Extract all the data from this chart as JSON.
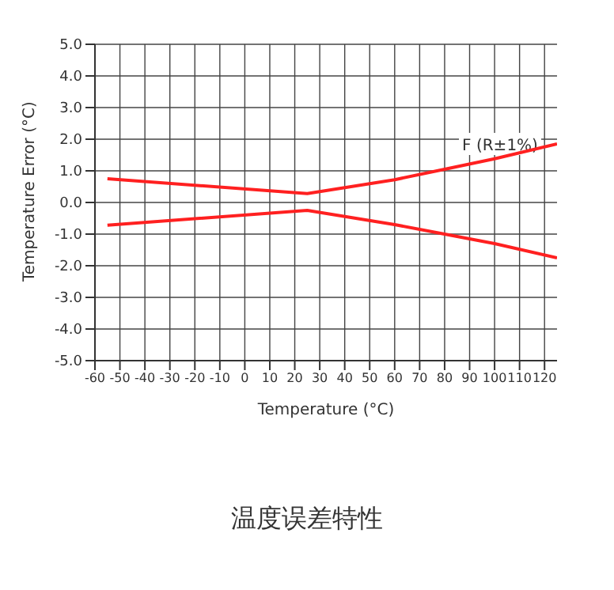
{
  "chart_data": {
    "type": "line",
    "title": "温度误差特性",
    "xlabel": "Temperature (°C)",
    "ylabel": "Temperature Error (°C)",
    "series": [
      {
        "color": "#ff2020",
        "x": [
          -55,
          25,
          60,
          80,
          100,
          125
        ],
        "values": [
          0.75,
          0.28,
          0.72,
          1.05,
          1.38,
          1.85
        ]
      },
      {
        "color": "#ff2020",
        "x": [
          -55,
          25,
          60,
          80,
          100,
          125
        ],
        "values": [
          -0.72,
          -0.25,
          -0.7,
          -1.0,
          -1.3,
          -1.75
        ]
      }
    ],
    "annotations": [
      "F (R±1%)"
    ],
    "xlim": [
      -60,
      125
    ],
    "xticks": [
      -60,
      -50,
      -40,
      -30,
      -20,
      -10,
      0,
      10,
      20,
      30,
      40,
      50,
      60,
      70,
      80,
      90,
      100,
      110,
      120
    ],
    "ylim": [
      -5,
      5
    ],
    "yticks": [
      {
        "value": -5,
        "label": "-5.0"
      },
      {
        "value": -4,
        "label": "-4.0"
      },
      {
        "value": -3,
        "label": "-3.0"
      },
      {
        "value": -2,
        "label": "-2.0"
      },
      {
        "value": -1,
        "label": "-1.0"
      },
      {
        "value": 0,
        "label": "0.0"
      },
      {
        "value": 1,
        "label": "1.0"
      },
      {
        "value": 2,
        "label": "2.0"
      },
      {
        "value": 3,
        "label": "3.0"
      },
      {
        "value": 4,
        "label": "4.0"
      },
      {
        "value": 5,
        "label": "5.0"
      }
    ],
    "grid": true,
    "marker": "none",
    "line_style": "solid"
  }
}
